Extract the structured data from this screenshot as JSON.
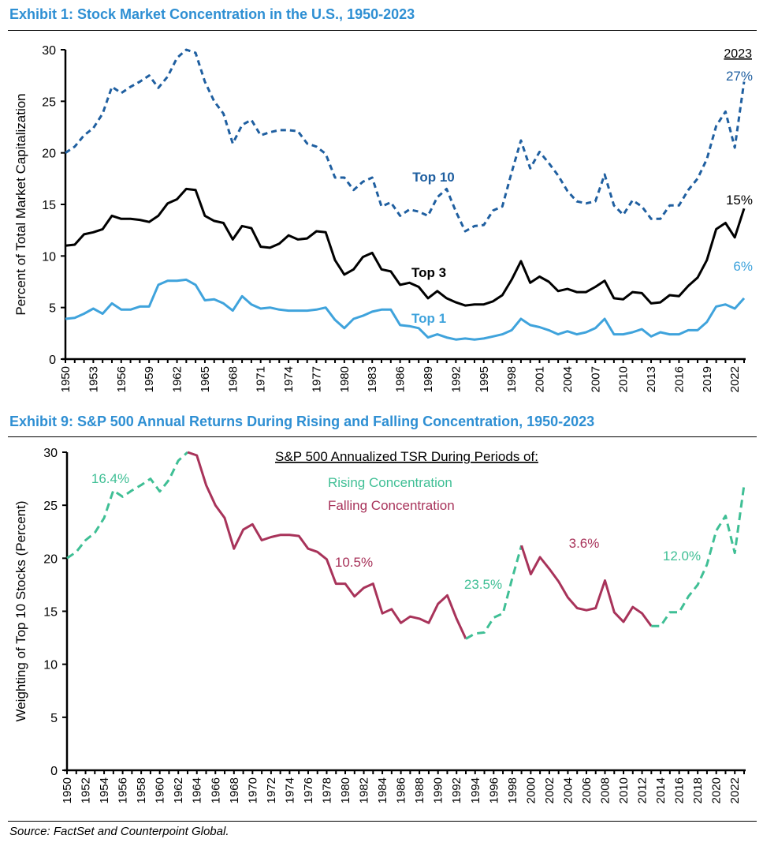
{
  "exhibit1": {
    "title": "Exhibit 1: Stock Market Concentration in the U.S., 1950-2023"
  },
  "exhibit9": {
    "title": "Exhibit 9: S&P 500 Annual Returns During Rising and Falling Concentration, 1950-2023"
  },
  "source": "Source: FactSet and Counterpoint Global.",
  "colors": {
    "title_blue": "#2e8fd3",
    "top10": "#1f5fa0",
    "top3": "#000000",
    "top1": "#3fa3dc",
    "rising": "#3fbf95",
    "falling": "#a8335a"
  },
  "chart_data": [
    {
      "type": "line",
      "title": "Exhibit 1: Stock Market Concentration in the U.S., 1950-2023",
      "xlabel": "",
      "ylabel": "Percent of Total Market Capitalization",
      "ylim": [
        0,
        30
      ],
      "yticks": [
        0,
        5,
        10,
        15,
        20,
        25,
        30
      ],
      "xlim": [
        1950,
        2023
      ],
      "xtick_labels": [
        "1950",
        "1953",
        "1956",
        "1959",
        "1962",
        "1965",
        "1968",
        "1971",
        "1974",
        "1977",
        "1980",
        "1983",
        "1986",
        "1989",
        "1992",
        "1995",
        "1998",
        "2001",
        "2004",
        "2007",
        "2010",
        "2013",
        "2016",
        "2019",
        "2022"
      ],
      "grid": false,
      "x": [
        1950,
        1951,
        1952,
        1953,
        1954,
        1955,
        1956,
        1957,
        1958,
        1959,
        1960,
        1961,
        1962,
        1963,
        1964,
        1965,
        1966,
        1967,
        1968,
        1969,
        1970,
        1971,
        1972,
        1973,
        1974,
        1975,
        1976,
        1977,
        1978,
        1979,
        1980,
        1981,
        1982,
        1983,
        1984,
        1985,
        1986,
        1987,
        1988,
        1989,
        1990,
        1991,
        1992,
        1993,
        1994,
        1995,
        1996,
        1997,
        1998,
        1999,
        2000,
        2001,
        2002,
        2003,
        2004,
        2005,
        2006,
        2007,
        2008,
        2009,
        2010,
        2011,
        2012,
        2013,
        2014,
        2015,
        2016,
        2017,
        2018,
        2019,
        2020,
        2021,
        2022,
        2023
      ],
      "series": [
        {
          "name": "Top 10",
          "style": "dashed",
          "values": [
            20.0,
            20.6,
            21.7,
            22.4,
            23.8,
            26.4,
            25.8,
            26.4,
            26.9,
            27.5,
            26.3,
            27.4,
            29.2,
            30.0,
            29.7,
            26.9,
            25.0,
            23.8,
            20.9,
            22.7,
            23.2,
            21.7,
            22.0,
            22.2,
            22.2,
            22.1,
            20.9,
            20.6,
            19.9,
            17.6,
            17.6,
            16.4,
            17.2,
            17.6,
            14.8,
            15.2,
            13.9,
            14.5,
            14.3,
            13.9,
            15.7,
            16.5,
            14.3,
            12.4,
            12.9,
            13.0,
            14.4,
            14.8,
            18.1,
            21.2,
            18.5,
            20.1,
            19.0,
            17.8,
            16.3,
            15.3,
            15.1,
            15.3,
            17.9,
            14.9,
            14.0,
            15.4,
            14.8,
            13.6,
            13.6,
            14.9,
            14.9,
            16.4,
            17.5,
            19.4,
            22.6,
            24.0,
            20.5,
            26.9
          ]
        },
        {
          "name": "Top 3",
          "style": "solid",
          "values": [
            11.0,
            11.1,
            12.1,
            12.3,
            12.6,
            13.9,
            13.6,
            13.6,
            13.5,
            13.3,
            13.9,
            15.1,
            15.5,
            16.5,
            16.4,
            13.9,
            13.4,
            13.2,
            11.6,
            12.9,
            12.7,
            10.9,
            10.8,
            11.2,
            12.0,
            11.6,
            11.7,
            12.4,
            12.3,
            9.6,
            8.2,
            8.7,
            9.9,
            10.3,
            8.7,
            8.5,
            7.2,
            7.4,
            7.0,
            5.9,
            6.6,
            5.9,
            5.5,
            5.2,
            5.3,
            5.3,
            5.6,
            6.2,
            7.7,
            9.5,
            7.4,
            8.0,
            7.5,
            6.6,
            6.8,
            6.5,
            6.5,
            7.0,
            7.6,
            5.9,
            5.8,
            6.5,
            6.4,
            5.4,
            5.5,
            6.2,
            6.1,
            7.1,
            7.9,
            9.6,
            12.6,
            13.2,
            11.8,
            14.6
          ]
        },
        {
          "name": "Top 1",
          "style": "solid",
          "values": [
            3.9,
            4.0,
            4.4,
            4.9,
            4.4,
            5.4,
            4.8,
            4.8,
            5.1,
            5.1,
            7.2,
            7.6,
            7.6,
            7.7,
            7.2,
            5.7,
            5.8,
            5.4,
            4.7,
            6.1,
            5.3,
            4.9,
            5.0,
            4.8,
            4.7,
            4.7,
            4.7,
            4.8,
            5.0,
            3.8,
            3.0,
            3.9,
            4.2,
            4.6,
            4.8,
            4.8,
            3.3,
            3.2,
            3.0,
            2.1,
            2.4,
            2.1,
            1.9,
            2.0,
            1.9,
            2.0,
            2.2,
            2.4,
            2.8,
            3.9,
            3.3,
            3.1,
            2.8,
            2.4,
            2.7,
            2.4,
            2.6,
            3.0,
            3.9,
            2.4,
            2.4,
            2.6,
            2.9,
            2.2,
            2.6,
            2.4,
            2.4,
            2.8,
            2.8,
            3.6,
            5.1,
            5.3,
            4.9,
            5.9
          ]
        }
      ],
      "annotations": {
        "header": "2023",
        "labels": [
          {
            "text": "27%",
            "series": "Top 10"
          },
          {
            "text": "15%",
            "series": "Top 3"
          },
          {
            "text": "6%",
            "series": "Top 1"
          }
        ],
        "series_labels": [
          "Top 10",
          "Top 3",
          "Top 1"
        ]
      }
    },
    {
      "type": "line",
      "title": "Exhibit 9: S&P 500 Annual Returns During Rising and Falling Concentration, 1950-2023",
      "xlabel": "",
      "ylabel": "Weighting of Top 10 Stocks (Percent)",
      "ylim": [
        0,
        30
      ],
      "yticks": [
        0,
        5,
        10,
        15,
        20,
        25,
        30
      ],
      "xlim": [
        1950,
        2023
      ],
      "xtick_labels": [
        "1950",
        "1952",
        "1954",
        "1956",
        "1958",
        "1960",
        "1962",
        "1964",
        "1966",
        "1968",
        "1970",
        "1972",
        "1974",
        "1976",
        "1978",
        "1980",
        "1982",
        "1984",
        "1986",
        "1988",
        "1990",
        "1992",
        "1994",
        "1996",
        "1998",
        "2000",
        "2002",
        "2004",
        "2006",
        "2008",
        "2010",
        "2012",
        "2014",
        "2016",
        "2018",
        "2020",
        "2022"
      ],
      "grid": false,
      "legend": {
        "title": "S&P 500 Annualized TSR During Periods of:",
        "entries": [
          "Rising Concentration",
          "Falling Concentration"
        ],
        "placement": "top-center"
      },
      "periods": [
        {
          "type": "Rising Concentration",
          "start": 1950,
          "end": 1963,
          "tsr": "16.4%"
        },
        {
          "type": "Falling Concentration",
          "start": 1963,
          "end": 1993,
          "tsr": "10.5%"
        },
        {
          "type": "Rising Concentration",
          "start": 1993,
          "end": 1999,
          "tsr": "23.5%"
        },
        {
          "type": "Falling Concentration",
          "start": 1999,
          "end": 2013,
          "tsr": "3.6%"
        },
        {
          "type": "Rising Concentration",
          "start": 2013,
          "end": 2023,
          "tsr": "12.0%"
        }
      ]
    }
  ]
}
